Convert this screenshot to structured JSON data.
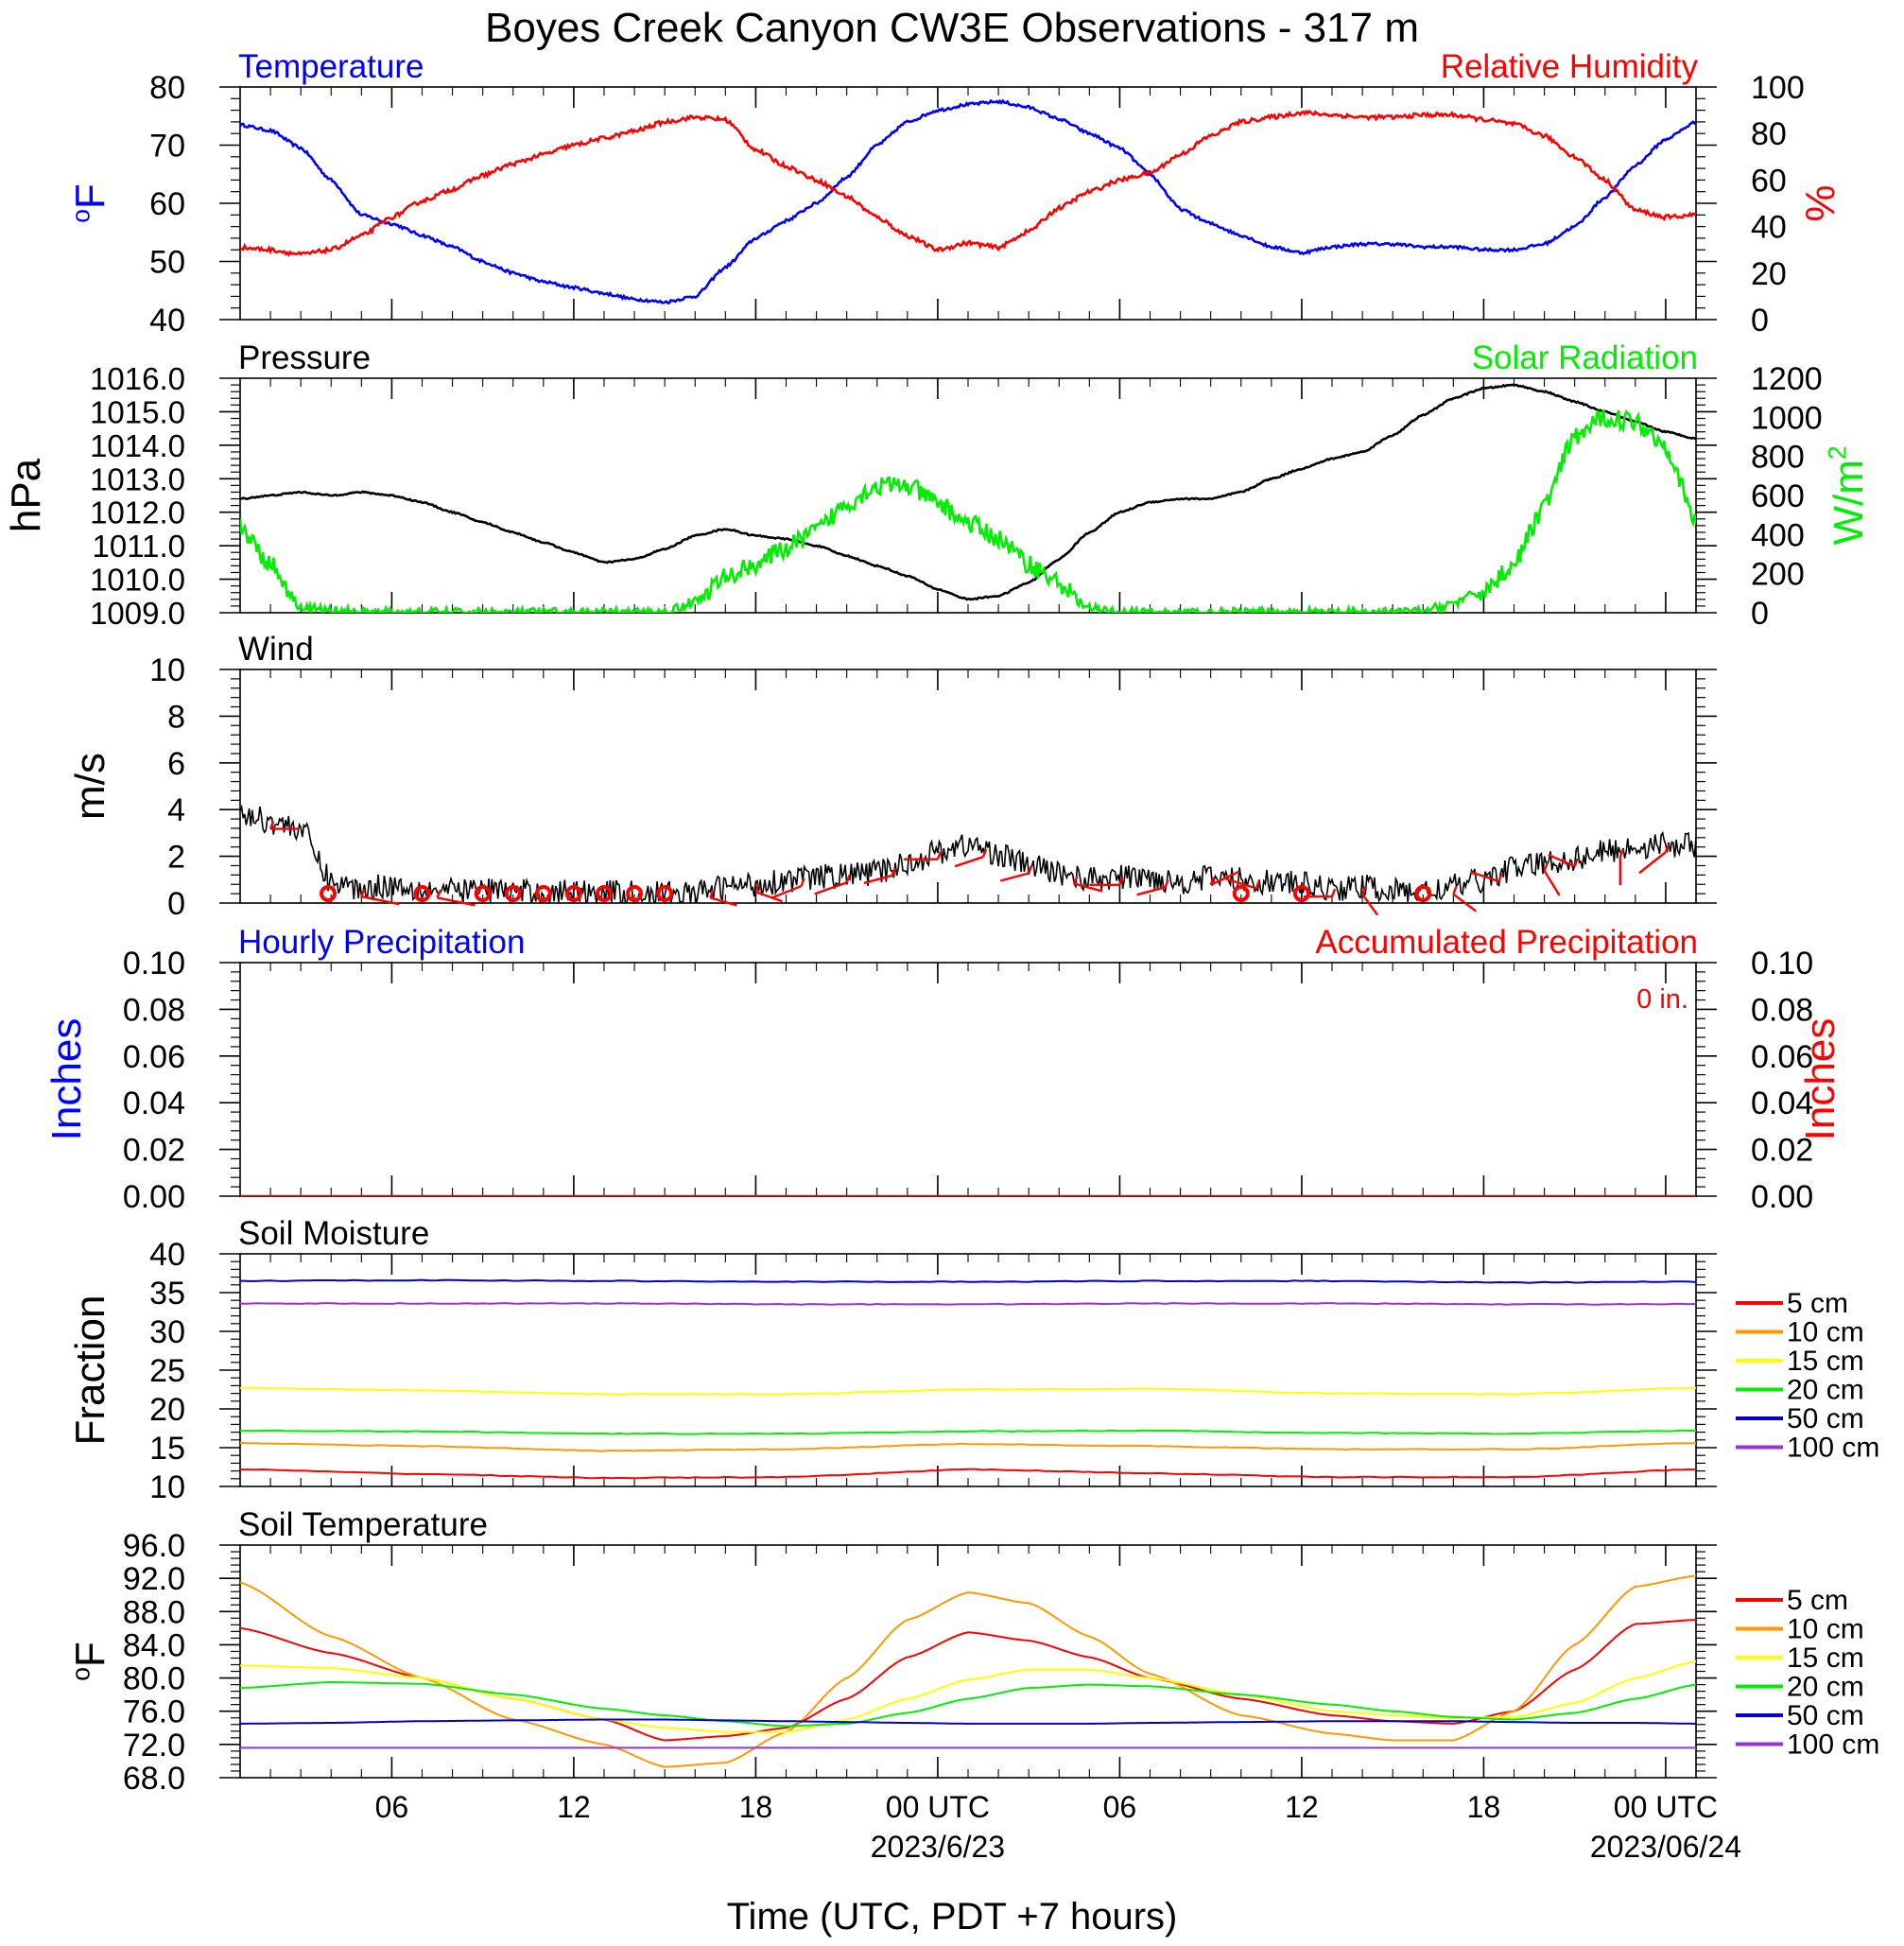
{
  "title": "Boyes Creek Canyon CW3E Observations - 317 m",
  "x_axis": {
    "label": "Time (UTC, PDT +7 hours)",
    "range_hours": [
      0,
      48
    ],
    "ticks": [
      {
        "h": 5,
        "label": "06"
      },
      {
        "h": 11,
        "label": "12"
      },
      {
        "h": 17,
        "label": "18"
      },
      {
        "h": 23,
        "label": "00 UTC",
        "date": "2023/6/23"
      },
      {
        "h": 29,
        "label": "06"
      },
      {
        "h": 35,
        "label": "12"
      },
      {
        "h": 41,
        "label": "18"
      },
      {
        "h": 47,
        "label": "00 UTC",
        "date": "2023/06/24"
      }
    ]
  },
  "colors": {
    "temperature": "#0000ff",
    "humidity": "#ff0000",
    "pressure": "#000000",
    "solar": "#00ee00",
    "wind": "#000000",
    "barbs": "#ff0000",
    "hourly_precip": "#0000ff",
    "accum_precip": "#ff0000",
    "depths": [
      "#ff0000",
      "#ff9900",
      "#ffff00",
      "#00ee00",
      "#0000cc",
      "#9933cc"
    ]
  },
  "chart_data": [
    {
      "type": "line",
      "title_left": "Temperature",
      "title_right": "Relative Humidity",
      "ylabel_left": "oF",
      "ylabel_right": "%",
      "ylim_left": [
        40,
        80
      ],
      "yticks_left": [
        "40",
        "50",
        "60",
        "70",
        "80"
      ],
      "ylim_right": [
        0,
        100
      ],
      "yticks_right": [
        "0",
        "20",
        "40",
        "60",
        "80",
        "100"
      ],
      "x_hours": [
        0,
        1,
        2,
        3,
        4,
        5,
        6,
        7,
        8,
        9,
        10,
        11,
        12,
        13,
        14,
        15,
        16,
        17,
        18,
        19,
        20,
        21,
        22,
        23,
        24,
        25,
        26,
        27,
        28,
        29,
        30,
        31,
        32,
        33,
        34,
        35,
        36,
        37,
        38,
        39,
        40,
        41,
        42,
        43,
        44,
        45,
        46,
        47,
        48
      ],
      "series": [
        {
          "name": "Temperature",
          "axis": "left",
          "values": [
            73.5,
            72.5,
            69.5,
            64,
            58,
            56.5,
            54.5,
            52.5,
            50,
            48,
            46.5,
            45.5,
            44.5,
            43.5,
            43,
            44,
            49,
            54,
            57,
            60,
            64.5,
            70,
            74,
            76,
            77,
            77.5,
            76.5,
            74.5,
            72,
            69.5,
            65,
            59,
            56.5,
            54.5,
            52.5,
            51.5,
            52.5,
            53,
            53,
            52.5,
            52.5,
            52,
            52,
            53,
            56,
            61,
            66.5,
            71,
            74
          ]
        },
        {
          "name": "Relative Humidity",
          "axis": "right",
          "values": [
            31,
            30,
            28,
            30,
            36,
            44,
            51,
            56,
            62,
            67,
            71,
            75,
            78,
            81,
            85,
            87,
            86,
            73,
            66,
            60,
            53,
            44,
            36,
            30,
            33,
            31,
            38,
            48,
            55,
            60,
            63,
            71,
            79,
            85,
            87,
            89,
            88,
            87,
            87,
            88,
            88,
            86,
            84,
            79,
            70,
            60,
            47,
            44,
            45
          ]
        }
      ]
    },
    {
      "type": "line",
      "title_left": "Pressure",
      "title_right": "Solar Radiation",
      "ylabel_left": "hPa",
      "ylabel_right": "W/m2",
      "ylim_left": [
        1009,
        1016
      ],
      "yticks_left": [
        "1009.0",
        "1010.0",
        "1011.0",
        "1012.0",
        "1013.0",
        "1014.0",
        "1015.0",
        "1016.0"
      ],
      "ylim_right": [
        0,
        1200
      ],
      "yticks_right": [
        "0",
        "200",
        "400",
        "600",
        "800",
        "1000",
        "1200"
      ],
      "x_hours": [
        0,
        1,
        2,
        3,
        4,
        5,
        6,
        7,
        8,
        9,
        10,
        11,
        12,
        13,
        14,
        15,
        16,
        17,
        18,
        19,
        20,
        21,
        22,
        23,
        24,
        25,
        26,
        27,
        28,
        29,
        30,
        31,
        32,
        33,
        34,
        35,
        36,
        37,
        38,
        39,
        40,
        41,
        42,
        43,
        44,
        45,
        46,
        47,
        48
      ],
      "series": [
        {
          "name": "Pressure",
          "axis": "left",
          "values": [
            1012.4,
            1012.5,
            1012.6,
            1012.5,
            1012.6,
            1012.5,
            1012.3,
            1012.0,
            1011.7,
            1011.4,
            1011.1,
            1010.8,
            1010.5,
            1010.6,
            1010.9,
            1011.3,
            1011.5,
            1011.3,
            1011.2,
            1011.0,
            1010.7,
            1010.4,
            1010.1,
            1009.7,
            1009.4,
            1009.5,
            1009.9,
            1010.6,
            1011.4,
            1012.0,
            1012.3,
            1012.4,
            1012.4,
            1012.6,
            1013.0,
            1013.3,
            1013.6,
            1013.8,
            1014.3,
            1014.9,
            1015.4,
            1015.7,
            1015.8,
            1015.6,
            1015.3,
            1015.0,
            1014.7,
            1014.4,
            1014.2
          ]
        },
        {
          "name": "Solar Radiation",
          "axis": "right",
          "values": [
            440,
            250,
            30,
            10,
            0,
            0,
            0,
            0,
            0,
            0,
            0,
            0,
            0,
            0,
            0,
            60,
            180,
            250,
            330,
            420,
            560,
            650,
            650,
            560,
            460,
            380,
            250,
            150,
            20,
            0,
            0,
            0,
            0,
            0,
            0,
            0,
            0,
            0,
            0,
            5,
            50,
            110,
            250,
            550,
            900,
            1000,
            980,
            860,
            460
          ]
        }
      ]
    },
    {
      "type": "line",
      "title_left": "Wind",
      "ylabel_left": "m/s",
      "ylim_left": [
        0,
        10
      ],
      "yticks_left": [
        "0",
        "2",
        "4",
        "6",
        "8",
        "10"
      ],
      "x_hours": [
        0,
        1,
        2,
        3,
        4,
        5,
        6,
        7,
        8,
        9,
        10,
        11,
        12,
        13,
        14,
        15,
        16,
        17,
        18,
        19,
        20,
        21,
        22,
        23,
        24,
        25,
        26,
        27,
        28,
        29,
        30,
        31,
        32,
        33,
        34,
        35,
        36,
        37,
        38,
        39,
        40,
        41,
        42,
        43,
        44,
        45,
        46,
        47,
        48
      ],
      "series": [
        {
          "name": "Wind speed",
          "axis": "left",
          "values": [
            3.8,
            3.5,
            3.2,
            0.9,
            0.6,
            0.8,
            0.6,
            0.5,
            0.6,
            0.5,
            0.4,
            0.5,
            0.5,
            0.4,
            0.4,
            0.4,
            0.7,
            0.8,
            1.0,
            1.1,
            1.2,
            1.3,
            1.7,
            2.2,
            2.5,
            2.1,
            1.6,
            1.3,
            1.0,
            1.1,
            1.1,
            0.9,
            1.1,
            1.0,
            0.9,
            0.8,
            0.6,
            0.7,
            0.5,
            0.5,
            0.7,
            1.0,
            1.5,
            1.7,
            1.9,
            2.2,
            2.4,
            2.5,
            2.5
          ]
        }
      ],
      "barbs": [
        {
          "h": 2.9,
          "kind": "calm"
        },
        {
          "h": 6,
          "kind": "calm"
        },
        {
          "h": 8,
          "kind": "calm"
        },
        {
          "h": 9,
          "kind": "calm"
        },
        {
          "h": 10,
          "kind": "calm"
        },
        {
          "h": 11,
          "kind": "calm"
        },
        {
          "h": 12,
          "kind": "calm"
        },
        {
          "h": 13,
          "kind": "calm"
        },
        {
          "h": 14,
          "kind": "calm"
        },
        {
          "h": 33,
          "kind": "calm"
        },
        {
          "h": 35,
          "kind": "calm"
        },
        {
          "h": 39,
          "kind": "calm"
        },
        {
          "h": 1,
          "kind": "barb",
          "dx": 30,
          "dy": 0
        },
        {
          "h": 4,
          "kind": "barb",
          "dx": 40,
          "dy": 8
        },
        {
          "h": 6.5,
          "kind": "barb",
          "dx": 40,
          "dy": 8
        },
        {
          "h": 15.5,
          "kind": "barb",
          "dx": 28,
          "dy": 8
        },
        {
          "h": 17,
          "kind": "barb",
          "dx": 28,
          "dy": 10
        },
        {
          "h": 18.5,
          "kind": "barb",
          "dx": -30,
          "dy": 12
        },
        {
          "h": 20,
          "kind": "barb",
          "dx": -34,
          "dy": 12
        },
        {
          "h": 21.5,
          "kind": "barb",
          "dx": -30,
          "dy": 8
        },
        {
          "h": 23,
          "kind": "barb",
          "dx": -36,
          "dy": 0
        },
        {
          "h": 24.5,
          "kind": "barb",
          "dx": -30,
          "dy": 10
        },
        {
          "h": 26,
          "kind": "barb",
          "dx": -30,
          "dy": 8
        },
        {
          "h": 27.5,
          "kind": "barb",
          "dx": 30,
          "dy": 8
        },
        {
          "h": 29,
          "kind": "barb",
          "dx": -32,
          "dy": 0
        },
        {
          "h": 30.5,
          "kind": "barb",
          "dx": -30,
          "dy": 8
        },
        {
          "h": 32,
          "kind": "barb",
          "dx": 30,
          "dy": -14
        },
        {
          "h": 33.5,
          "kind": "barb",
          "dx": -32,
          "dy": -10
        },
        {
          "h": 36,
          "kind": "barb",
          "dx": -30,
          "dy": 0
        },
        {
          "h": 37,
          "kind": "barb",
          "dx": 16,
          "dy": 22
        },
        {
          "h": 40,
          "kind": "barb",
          "dx": 24,
          "dy": 18
        },
        {
          "h": 41.5,
          "kind": "barb",
          "dx": -30,
          "dy": -10
        },
        {
          "h": 43,
          "kind": "barb",
          "dx": 16,
          "dy": 26
        },
        {
          "h": 44,
          "kind": "barb",
          "dx": -28,
          "dy": -12
        },
        {
          "h": 45.5,
          "kind": "barb",
          "dx": 0,
          "dy": 30
        },
        {
          "h": 47,
          "kind": "barb",
          "dx": -28,
          "dy": 22
        }
      ]
    },
    {
      "type": "line",
      "title_left": "Hourly Precipitation",
      "title_right": "Accumulated Precipitation",
      "annotation": "0 in.",
      "ylabel_left": "Inches",
      "ylabel_right": "Inches",
      "ylim_left": [
        0,
        0.1
      ],
      "yticks_left": [
        "0.00",
        "0.02",
        "0.04",
        "0.06",
        "0.08",
        "0.10"
      ],
      "ylim_right": [
        0,
        0.1
      ],
      "yticks_right": [
        "0.00",
        "0.02",
        "0.04",
        "0.06",
        "0.08",
        "0.10"
      ],
      "x_hours": [
        0,
        48
      ],
      "series": [
        {
          "name": "Hourly Precipitation",
          "axis": "left",
          "values": [
            0,
            0
          ]
        },
        {
          "name": "Accumulated Precipitation",
          "axis": "right",
          "values": [
            0,
            0
          ]
        }
      ]
    },
    {
      "type": "line",
      "title_left": "Soil Moisture",
      "ylabel_left": "Fraction",
      "ylim_left": [
        10,
        40
      ],
      "yticks_left": [
        "10",
        "15",
        "20",
        "25",
        "30",
        "35",
        "40"
      ],
      "x_hours": [
        0,
        6,
        12,
        18,
        24,
        30,
        36,
        42,
        48
      ],
      "legend": [
        "5 cm",
        "10 cm",
        "15 cm",
        "20 cm",
        "50 cm",
        "100 cm"
      ],
      "series": [
        {
          "name": "5 cm",
          "axis": "left",
          "values": [
            12.2,
            11.6,
            11.1,
            11.2,
            12.2,
            11.7,
            11.2,
            11.2,
            12.2
          ]
        },
        {
          "name": "10 cm",
          "axis": "left",
          "values": [
            15.6,
            15.2,
            14.6,
            14.8,
            15.5,
            15.2,
            14.8,
            14.8,
            15.6
          ]
        },
        {
          "name": "15 cm",
          "axis": "left",
          "values": [
            22.7,
            22.4,
            21.9,
            21.9,
            22.5,
            22.6,
            22.0,
            21.9,
            22.7
          ]
        },
        {
          "name": "20 cm",
          "axis": "left",
          "values": [
            17.2,
            17.1,
            16.8,
            16.8,
            17.1,
            17.2,
            16.9,
            16.8,
            17.2
          ]
        },
        {
          "name": "50 cm",
          "axis": "left",
          "values": [
            36.5,
            36.6,
            36.5,
            36.4,
            36.4,
            36.5,
            36.5,
            36.3,
            36.4
          ]
        },
        {
          "name": "100 cm",
          "axis": "left",
          "values": [
            33.6,
            33.6,
            33.6,
            33.5,
            33.5,
            33.6,
            33.6,
            33.5,
            33.5
          ]
        }
      ]
    },
    {
      "type": "line",
      "title_left": "Soil Temperature",
      "ylabel_left": "oF",
      "ylim_left": [
        68,
        96
      ],
      "yticks_left": [
        "68.0",
        "72.0",
        "76.0",
        "80.0",
        "84.0",
        "88.0",
        "92.0",
        "96.0"
      ],
      "x_hours": [
        0,
        3,
        6,
        9,
        12,
        14,
        16,
        18,
        20,
        22,
        24,
        26,
        28,
        30,
        33,
        36,
        38,
        40,
        42,
        44,
        46,
        48
      ],
      "legend": [
        "5 cm",
        "10 cm",
        "15 cm",
        "20 cm",
        "50 cm",
        "100 cm"
      ],
      "series": [
        {
          "name": "5 cm",
          "axis": "left",
          "values": [
            86,
            83,
            80,
            77.5,
            75,
            72.5,
            73,
            74,
            77.5,
            82.5,
            85.5,
            84.5,
            82.5,
            80,
            77.5,
            75.5,
            74.8,
            74.5,
            76,
            81,
            86.5,
            87
          ]
        },
        {
          "name": "10 cm",
          "axis": "left",
          "values": [
            91.5,
            85,
            80,
            75,
            72,
            69.3,
            69.8,
            73.5,
            80,
            87,
            90.3,
            89,
            85,
            80.5,
            75.5,
            73.3,
            72.5,
            72.5,
            76,
            84,
            91,
            92.3
          ]
        },
        {
          "name": "15 cm",
          "axis": "left",
          "values": [
            81.5,
            81.2,
            80,
            77.5,
            75,
            74,
            73.5,
            73.5,
            75,
            77.5,
            79.8,
            81,
            81,
            80,
            78,
            76,
            75.5,
            75.2,
            75.3,
            77,
            80,
            82
          ]
        },
        {
          "name": "20 cm",
          "axis": "left",
          "values": [
            78.8,
            79.5,
            79.3,
            78,
            76.3,
            75.5,
            74.8,
            74.2,
            74.5,
            75.8,
            77.5,
            78.8,
            79.2,
            79,
            78,
            76.8,
            76,
            75.3,
            75,
            75.8,
            77.5,
            79.2
          ]
        },
        {
          "name": "50 cm",
          "axis": "left",
          "values": [
            74.5,
            74.6,
            74.8,
            74.9,
            75,
            75,
            74.9,
            74.8,
            74.7,
            74.6,
            74.5,
            74.5,
            74.5,
            74.6,
            74.7,
            74.8,
            74.8,
            74.8,
            74.7,
            74.6,
            74.6,
            74.5
          ]
        },
        {
          "name": "100 cm",
          "axis": "left",
          "values": [
            71.6,
            71.6,
            71.6,
            71.6,
            71.6,
            71.6,
            71.6,
            71.6,
            71.6,
            71.6,
            71.6,
            71.6,
            71.6,
            71.6,
            71.6,
            71.6,
            71.6,
            71.6,
            71.6,
            71.6,
            71.6,
            71.6
          ]
        }
      ]
    }
  ]
}
